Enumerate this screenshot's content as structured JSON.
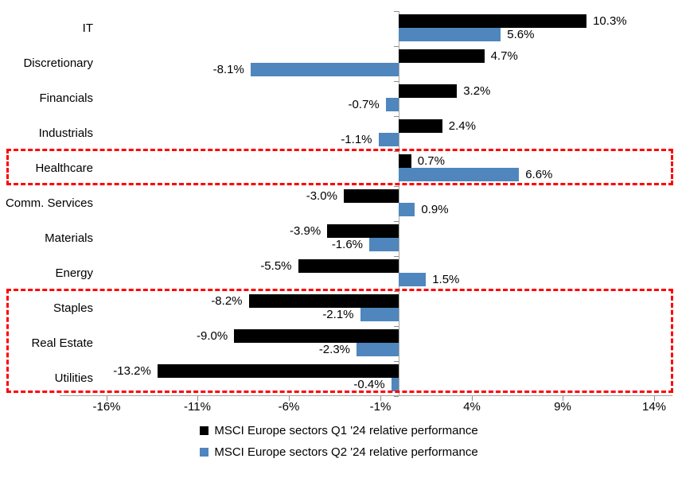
{
  "chart_data": {
    "type": "bar",
    "orientation": "horizontal",
    "categories": [
      "IT",
      "Discretionary",
      "Financials",
      "Industrials",
      "Healthcare",
      "Comm. Services",
      "Materials",
      "Energy",
      "Staples",
      "Real Estate",
      "Utilities"
    ],
    "series": [
      {
        "name": "MSCI Europe sectors Q1 '24 relative performance",
        "color": "#000000",
        "values": [
          10.3,
          4.7,
          3.2,
          2.4,
          0.7,
          -3.0,
          -3.9,
          -5.5,
          -8.2,
          -9.0,
          -13.2
        ],
        "labels": [
          "10.3%",
          "4.7%",
          "3.2%",
          "2.4%",
          "0.7%",
          "-3.0%",
          "-3.9%",
          "-5.5%",
          "-8.2%",
          "-9.0%",
          "-13.2%"
        ]
      },
      {
        "name": "MSCI Europe sectors Q2 '24 relative performance",
        "color": "#4F86BD",
        "values": [
          5.6,
          -8.1,
          -0.7,
          -1.1,
          6.6,
          0.9,
          -1.6,
          1.5,
          -2.1,
          -2.3,
          -0.4
        ],
        "labels": [
          "5.6%",
          "-8.1%",
          "-0.7%",
          "-1.1%",
          "6.6%",
          "0.9%",
          "-1.6%",
          "1.5%",
          "-2.1%",
          "-2.3%",
          "-0.4%"
        ]
      }
    ],
    "x_tick_labels": [
      "-16%",
      "-11%",
      "-6%",
      "-1%",
      "4%",
      "9%",
      "14%"
    ],
    "x_tick_values": [
      -16,
      -11,
      -6,
      -1,
      4,
      9,
      14
    ],
    "xlim": [
      -18.55,
      15.0
    ],
    "grid": false,
    "legend_position": "bottom",
    "axis_color": "#A6A6A6",
    "highlight_color": "#FF0000",
    "highlights": [
      {
        "categories": [
          "Healthcare"
        ],
        "first_index": 4,
        "last_index": 4
      },
      {
        "categories": [
          "Staples",
          "Real Estate",
          "Utilities"
        ],
        "first_index": 8,
        "last_index": 10
      }
    ]
  }
}
